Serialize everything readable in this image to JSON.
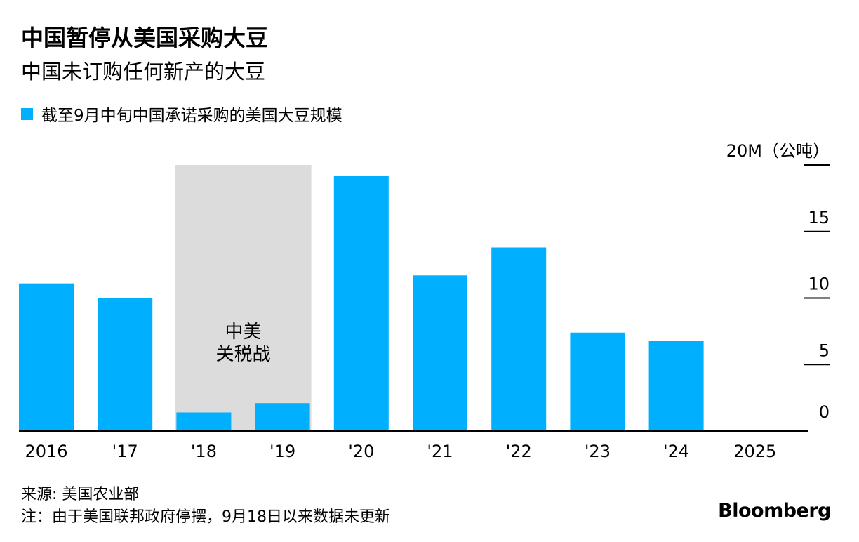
{
  "title": "中国暂停从美国采购大豆",
  "subtitle": "中国未订购任何新产的大豆",
  "legend": {
    "label": "截至9月中旬中国承诺采购的美国大豆规模",
    "color": "#00b0ff"
  },
  "source": "来源: 美国农业部",
  "note": "注：由于美国联邦政府停摆，9月18日以来数据未更新",
  "brand": "Bloomberg",
  "chart_data": {
    "type": "bar",
    "categories": [
      "2016",
      "'17",
      "'18",
      "'19",
      "'20",
      "'21",
      "'22",
      "'23",
      "'24",
      "2025"
    ],
    "series": [
      {
        "name": "截至9月中旬中国承诺采购的美国大豆规模",
        "values": [
          11.1,
          10.0,
          1.4,
          2.1,
          19.2,
          11.7,
          13.8,
          7.4,
          6.8,
          0.05
        ]
      }
    ],
    "ylim": [
      0,
      20
    ],
    "y_ticks": [
      0,
      5,
      10,
      15,
      20
    ],
    "y_tick_labels": [
      "0",
      "5",
      "10",
      "15",
      "20M（公吨）"
    ],
    "axis_position": "right",
    "bar_color": "#00b0ff",
    "shaded_region": {
      "from": "'18",
      "to": "'19",
      "label_line1": "中美",
      "label_line2": "关税战",
      "color": "#dcdcdc"
    },
    "grid": false,
    "legend_position": "top-left"
  }
}
